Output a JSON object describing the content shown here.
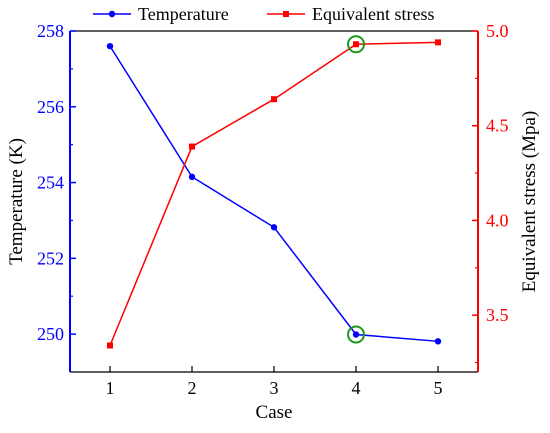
{
  "chart_data": {
    "type": "line",
    "categories": [
      "1",
      "2",
      "3",
      "4",
      "5"
    ],
    "xlabel": "Case",
    "series": [
      {
        "name": "Temperature",
        "axis": "left",
        "color": "#0000ff",
        "marker": "circle",
        "values": [
          257.6,
          254.15,
          252.82,
          249.99,
          249.81
        ]
      },
      {
        "name": "Equivalent stress",
        "axis": "right",
        "color": "#ff0000",
        "marker": "square",
        "values": [
          3.34,
          4.39,
          4.64,
          4.93,
          4.94
        ]
      }
    ],
    "y_left": {
      "label": "Temperature (K)",
      "range": [
        249,
        258
      ],
      "ticks": [
        "250",
        "252",
        "254",
        "256",
        "258"
      ],
      "color": "#0000ff"
    },
    "y_right": {
      "label": "Equivalent stress (Mpa)",
      "range": [
        3.2,
        5.0
      ],
      "ticks": [
        "3.5",
        "4.0",
        "4.5",
        "5.0"
      ],
      "color": "#ff0000"
    },
    "highlight": {
      "category": "4",
      "color": "#1a9a1a"
    },
    "legend": {
      "placement": "top"
    }
  }
}
